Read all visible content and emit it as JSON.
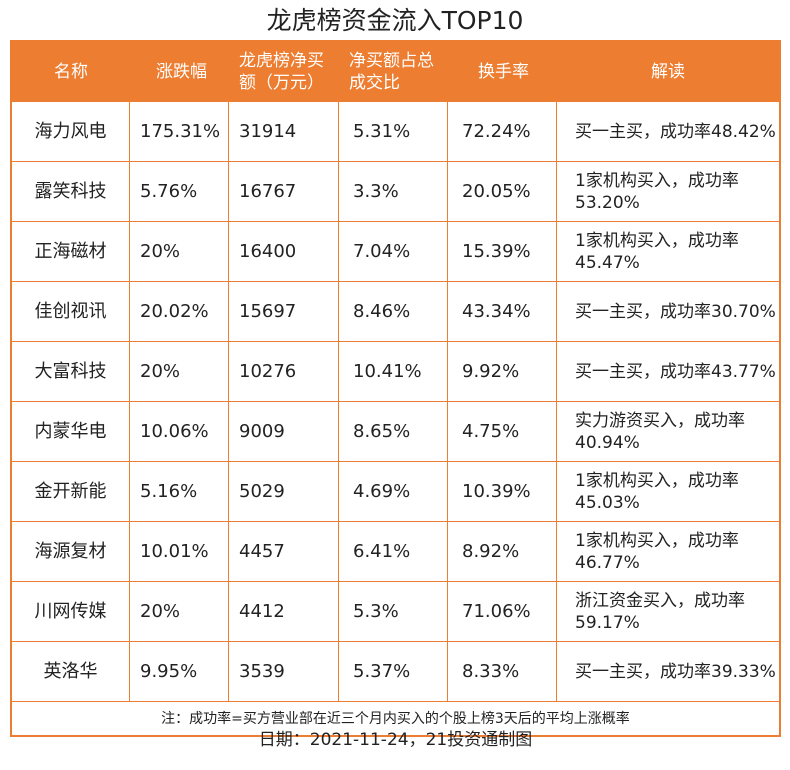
{
  "title": "龙虎榜资金流入TOP10",
  "headers": [
    "名称",
    "涨跌幅",
    "龙虎榜净买额（万元）",
    "净买额占总成交比",
    "换手率",
    "解读"
  ],
  "rows": [
    [
      "海力风电",
      "175.31%",
      "31914",
      "5.31%",
      "72.24%",
      "买一主买，成功率48.42%"
    ],
    [
      "露笑科技",
      "5.76%",
      "16767",
      "3.3%",
      "20.05%",
      "1家机构买入，成功率53.20%"
    ],
    [
      "正海磁材",
      "20%",
      "16400",
      "7.04%",
      "15.39%",
      "1家机构买入，成功率45.47%"
    ],
    [
      "佳创视讯",
      "20.02%",
      "15697",
      "8.46%",
      "43.34%",
      "买一主买，成功率30.70%"
    ],
    [
      "大富科技",
      "20%",
      "10276",
      "10.41%",
      "9.92%",
      "买一主买，成功率43.77%"
    ],
    [
      "内蒙华电",
      "10.06%",
      "9009",
      "8.65%",
      "4.75%",
      "实力游资买入，成功率40.94%"
    ],
    [
      "金开新能",
      "5.16%",
      "5029",
      "4.69%",
      "10.39%",
      "1家机构买入，成功率45.03%"
    ],
    [
      "海源复材",
      "10.01%",
      "4457",
      "6.41%",
      "8.92%",
      "1家机构买入，成功率46.77%"
    ],
    [
      "川网传媒",
      "20%",
      "4412",
      "5.3%",
      "71.06%",
      "浙江资金买入，成功率59.17%"
    ],
    [
      "英洛华",
      "9.95%",
      "3539",
      "5.37%",
      "8.33%",
      "买一主买，成功率39.33%"
    ]
  ],
  "note": "注：成功率=买方营业部在近三个月内买入的个股上榜3天后的平均上涨概率",
  "date": "日期：2021-11-24，21投资通制图",
  "colors": {
    "accent": "#ed7d31"
  }
}
